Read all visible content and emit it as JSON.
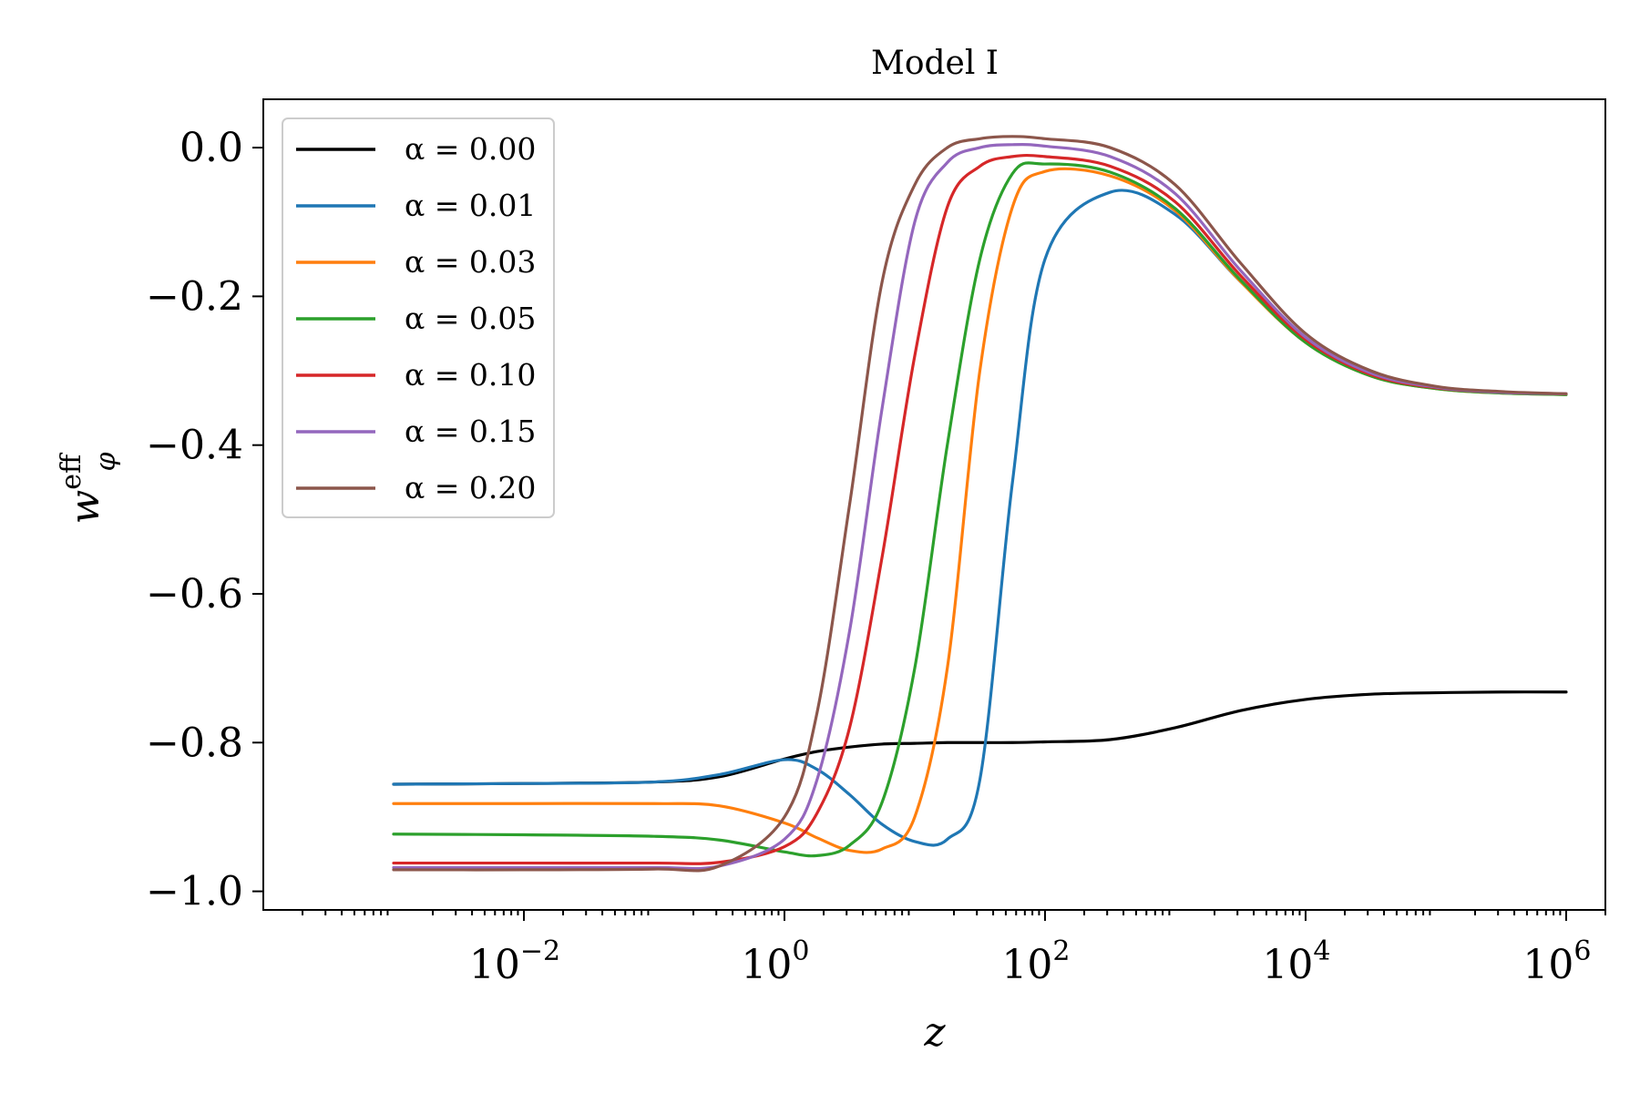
{
  "chart_data": {
    "type": "line",
    "title": "Model I",
    "xlabel": "z",
    "ylabel": {
      "base": "w",
      "superscript": "eff",
      "subscript": "φ"
    },
    "xscale": "log",
    "xlim": [
      0.0001,
      2000000
    ],
    "ylim": [
      -1.025,
      0.065
    ],
    "xticks": [
      {
        "value": 0.01,
        "base": "10",
        "exp": "−2"
      },
      {
        "value": 1,
        "base": "10",
        "exp": "0"
      },
      {
        "value": 100,
        "base": "10",
        "exp": "2"
      },
      {
        "value": 10000,
        "base": "10",
        "exp": "4"
      },
      {
        "value": 1000000,
        "base": "10",
        "exp": "6"
      }
    ],
    "yticks": [
      {
        "value": 0.0,
        "label": "0.0"
      },
      {
        "value": -0.2,
        "label": "−0.2"
      },
      {
        "value": -0.4,
        "label": "−0.4"
      },
      {
        "value": -0.6,
        "label": "−0.6"
      },
      {
        "value": -0.8,
        "label": "−0.8"
      },
      {
        "value": -1.0,
        "label": "−1.0"
      }
    ],
    "legend_position": "top-left",
    "x_log10_grid": [
      -3,
      -2,
      -1,
      -0.5,
      0,
      0.25,
      0.5,
      0.75,
      1,
      1.25,
      1.5,
      1.75,
      2,
      2.5,
      3,
      3.5,
      4,
      4.5,
      5,
      5.5,
      6
    ],
    "series": [
      {
        "name": "α = 0.00",
        "color": "#000000",
        "y": [
          -0.856,
          -0.855,
          -0.853,
          -0.846,
          -0.822,
          -0.812,
          -0.806,
          -0.802,
          -0.801,
          -0.8,
          -0.8,
          -0.8,
          -0.799,
          -0.796,
          -0.78,
          -0.757,
          -0.742,
          -0.735,
          -0.733,
          -0.732,
          -0.732
        ]
      },
      {
        "name": "α = 0.01",
        "color": "#1f77b4",
        "y": [
          -0.856,
          -0.855,
          -0.853,
          -0.843,
          -0.823,
          -0.836,
          -0.87,
          -0.91,
          -0.933,
          -0.93,
          -0.85,
          -0.45,
          -0.15,
          -0.06,
          -0.09,
          -0.18,
          -0.26,
          -0.305,
          -0.323,
          -0.329,
          -0.332
        ]
      },
      {
        "name": "α = 0.03",
        "color": "#ff7f0e",
        "y": [
          -0.882,
          -0.882,
          -0.882,
          -0.885,
          -0.908,
          -0.928,
          -0.945,
          -0.943,
          -0.9,
          -0.7,
          -0.3,
          -0.08,
          -0.032,
          -0.038,
          -0.085,
          -0.18,
          -0.262,
          -0.307,
          -0.324,
          -0.33,
          -0.332
        ]
      },
      {
        "name": "α = 0.05",
        "color": "#2ca02c",
        "y": [
          -0.923,
          -0.924,
          -0.926,
          -0.931,
          -0.947,
          -0.952,
          -0.938,
          -0.88,
          -0.7,
          -0.4,
          -0.15,
          -0.035,
          -0.022,
          -0.033,
          -0.082,
          -0.178,
          -0.262,
          -0.307,
          -0.324,
          -0.33,
          -0.332
        ]
      },
      {
        "name": "α = 0.10",
        "color": "#d62728",
        "y": [
          -0.962,
          -0.962,
          -0.962,
          -0.961,
          -0.94,
          -0.895,
          -0.78,
          -0.55,
          -0.28,
          -0.08,
          -0.025,
          -0.012,
          -0.012,
          -0.025,
          -0.073,
          -0.172,
          -0.258,
          -0.305,
          -0.323,
          -0.329,
          -0.331
        ]
      },
      {
        "name": "α = 0.15",
        "color": "#9467bd",
        "y": [
          -0.968,
          -0.968,
          -0.968,
          -0.966,
          -0.93,
          -0.85,
          -0.65,
          -0.35,
          -0.1,
          -0.02,
          0.0,
          0.004,
          0.002,
          -0.012,
          -0.062,
          -0.165,
          -0.255,
          -0.303,
          -0.322,
          -0.329,
          -0.331
        ]
      },
      {
        "name": "α = 0.20",
        "color": "#8c564b",
        "y": [
          -0.971,
          -0.971,
          -0.97,
          -0.966,
          -0.9,
          -0.76,
          -0.48,
          -0.18,
          -0.05,
          0.0,
          0.012,
          0.015,
          0.012,
          0.0,
          -0.05,
          -0.155,
          -0.25,
          -0.3,
          -0.321,
          -0.328,
          -0.331
        ]
      }
    ]
  }
}
